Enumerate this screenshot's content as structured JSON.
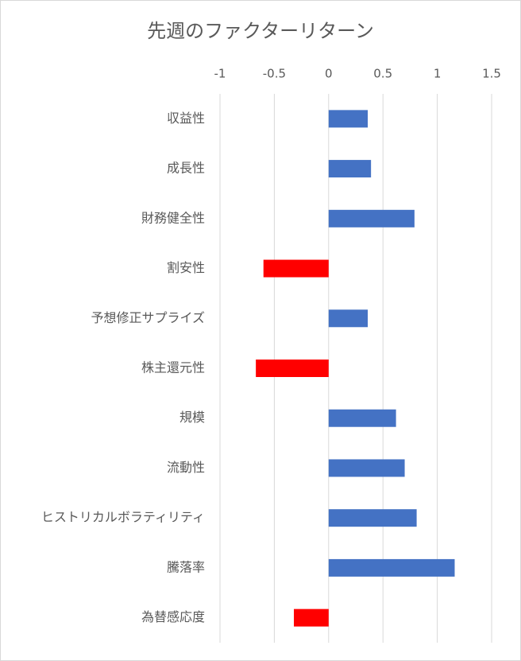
{
  "chart_data": {
    "type": "bar",
    "orientation": "horizontal",
    "title": "先週のファクターリターン",
    "categories": [
      "収益性",
      "成長性",
      "財務健全性",
      "割安性",
      "予想修正サプライズ",
      "株主還元性",
      "規模",
      "流動性",
      "ヒストリカルボラティリティ",
      "騰落率",
      "為替感応度"
    ],
    "values": [
      0.36,
      0.39,
      0.79,
      -0.6,
      0.36,
      -0.67,
      0.62,
      0.7,
      0.81,
      1.16,
      -0.32
    ],
    "color": "#4472c4",
    "negative_color": "#ff0000",
    "xlim": [
      -1,
      1.5
    ],
    "xticks": [
      -1,
      -0.5,
      0,
      0.5,
      1,
      1.5
    ],
    "grid": true
  }
}
